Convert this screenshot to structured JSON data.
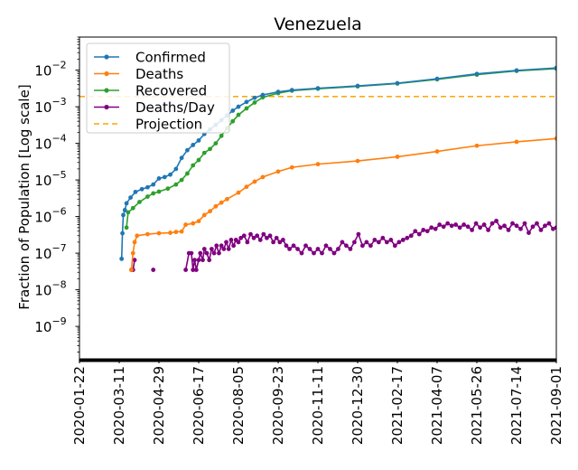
{
  "chart_data": {
    "type": "line",
    "title": "Venezuela",
    "xlabel": "",
    "ylabel": "Fraction of Population [Log scale]",
    "yscale": "log",
    "ylim": [
      1.3e-10,
      0.08
    ],
    "xlim": [
      "2020-01-22",
      "2021-09-01"
    ],
    "x_tick_labels": [
      "2020-01-22",
      "2020-03-11",
      "2020-04-29",
      "2020-06-17",
      "2020-08-05",
      "2020-09-23",
      "2020-11-11",
      "2020-12-30",
      "2021-02-17",
      "2021-04-07",
      "2021-05-26",
      "2021-07-14",
      "2021-09-01"
    ],
    "y_ticks": [
      {
        "value": 1e-09,
        "base": "10",
        "exp": "−9"
      },
      {
        "value": 1e-08,
        "base": "10",
        "exp": "−8"
      },
      {
        "value": 1e-07,
        "base": "10",
        "exp": "−7"
      },
      {
        "value": 1e-06,
        "base": "10",
        "exp": "−6"
      },
      {
        "value": 1e-05,
        "base": "10",
        "exp": "−5"
      },
      {
        "value": 0.0001,
        "base": "10",
        "exp": "−4"
      },
      {
        "value": 0.001,
        "base": "10",
        "exp": "−3"
      },
      {
        "value": 0.01,
        "base": "10",
        "exp": "−2"
      }
    ],
    "legend": {
      "position": "upper-left",
      "entries": [
        {
          "label": "Confirmed",
          "color": "#1f77b4",
          "style": "line-marker"
        },
        {
          "label": "Deaths",
          "color": "#ff7f0e",
          "style": "line-marker"
        },
        {
          "label": "Recovered",
          "color": "#2ca02c",
          "style": "line-marker"
        },
        {
          "label": "Deaths/Day",
          "color": "#800080",
          "style": "line-marker"
        },
        {
          "label": "Projection",
          "color": "#ffa500",
          "style": "dashed"
        }
      ]
    },
    "projection": {
      "label": "Projection",
      "value": 0.0019,
      "color": "#ffa500"
    },
    "series": [
      {
        "name": "Confirmed",
        "color": "#1f77b4",
        "points": [
          [
            "2020-03-14",
            7e-08
          ],
          [
            "2020-03-15",
            3.5e-07
          ],
          [
            "2020-03-16",
            1.1e-06
          ],
          [
            "2020-03-18",
            1.5e-06
          ],
          [
            "2020-03-20",
            2.3e-06
          ],
          [
            "2020-03-25",
            3.3e-06
          ],
          [
            "2020-03-31",
            4.7e-06
          ],
          [
            "2020-04-08",
            5.6e-06
          ],
          [
            "2020-04-15",
            6.3e-06
          ],
          [
            "2020-04-22",
            7.5e-06
          ],
          [
            "2020-04-29",
            1.1e-05
          ],
          [
            "2020-05-06",
            1.2e-05
          ],
          [
            "2020-05-13",
            1.4e-05
          ],
          [
            "2020-05-20",
            2e-05
          ],
          [
            "2020-05-27",
            4e-05
          ],
          [
            "2020-06-03",
            6.5e-05
          ],
          [
            "2020-06-10",
            9e-05
          ],
          [
            "2020-06-17",
            0.00012
          ],
          [
            "2020-06-24",
            0.00018
          ],
          [
            "2020-07-01",
            0.00024
          ],
          [
            "2020-07-08",
            0.00032
          ],
          [
            "2020-07-15",
            0.00043
          ],
          [
            "2020-07-22",
            0.00058
          ],
          [
            "2020-07-29",
            0.00078
          ],
          [
            "2020-08-05",
            0.001
          ],
          [
            "2020-08-15",
            0.00135
          ],
          [
            "2020-08-25",
            0.00175
          ],
          [
            "2020-09-04",
            0.0021
          ],
          [
            "2020-09-23",
            0.00255
          ],
          [
            "2020-10-10",
            0.00285
          ],
          [
            "2020-11-11",
            0.0032
          ],
          [
            "2020-12-30",
            0.0037
          ],
          [
            "2021-02-17",
            0.0044
          ],
          [
            "2021-04-07",
            0.0058
          ],
          [
            "2021-05-26",
            0.0079
          ],
          [
            "2021-07-14",
            0.0098
          ],
          [
            "2021-09-01",
            0.0115
          ]
        ]
      },
      {
        "name": "Deaths",
        "color": "#ff7f0e",
        "points": [
          [
            "2020-03-26",
            3.5e-08
          ],
          [
            "2020-03-28",
            1e-07
          ],
          [
            "2020-03-30",
            2e-07
          ],
          [
            "2020-04-02",
            3e-07
          ],
          [
            "2020-04-15",
            3.3e-07
          ],
          [
            "2020-04-29",
            3.5e-07
          ],
          [
            "2020-05-13",
            3.6e-07
          ],
          [
            "2020-05-20",
            3.8e-07
          ],
          [
            "2020-05-27",
            3.9e-07
          ],
          [
            "2020-06-01",
            6e-07
          ],
          [
            "2020-06-10",
            6.5e-07
          ],
          [
            "2020-06-17",
            7.5e-07
          ],
          [
            "2020-06-24",
            1.1e-06
          ],
          [
            "2020-07-01",
            1.4e-06
          ],
          [
            "2020-07-08",
            1.9e-06
          ],
          [
            "2020-07-15",
            2.4e-06
          ],
          [
            "2020-07-22",
            3e-06
          ],
          [
            "2020-08-05",
            4.5e-06
          ],
          [
            "2020-08-15",
            6.5e-06
          ],
          [
            "2020-08-25",
            9e-06
          ],
          [
            "2020-09-04",
            1.2e-05
          ],
          [
            "2020-09-23",
            1.7e-05
          ],
          [
            "2020-10-10",
            2.2e-05
          ],
          [
            "2020-11-11",
            2.7e-05
          ],
          [
            "2020-12-30",
            3.3e-05
          ],
          [
            "2021-02-17",
            4.3e-05
          ],
          [
            "2021-04-07",
            6e-05
          ],
          [
            "2021-05-26",
            8.6e-05
          ],
          [
            "2021-07-14",
            0.00011
          ],
          [
            "2021-09-01",
            0.000135
          ]
        ]
      },
      {
        "name": "Recovered",
        "color": "#2ca02c",
        "points": [
          [
            "2020-03-20",
            5e-07
          ],
          [
            "2020-03-22",
            1.3e-06
          ],
          [
            "2020-03-28",
            1.7e-06
          ],
          [
            "2020-04-05",
            2.5e-06
          ],
          [
            "2020-04-15",
            3.5e-06
          ],
          [
            "2020-04-22",
            4.3e-06
          ],
          [
            "2020-04-29",
            4.8e-06
          ],
          [
            "2020-05-10",
            5.8e-06
          ],
          [
            "2020-05-20",
            7.5e-06
          ],
          [
            "2020-05-27",
            1e-05
          ],
          [
            "2020-06-03",
            1.5e-05
          ],
          [
            "2020-06-10",
            2.5e-05
          ],
          [
            "2020-06-17",
            3.5e-05
          ],
          [
            "2020-06-24",
            5.5e-05
          ],
          [
            "2020-07-01",
            7e-05
          ],
          [
            "2020-07-08",
            0.0001
          ],
          [
            "2020-07-15",
            0.00016
          ],
          [
            "2020-07-22",
            0.00026
          ],
          [
            "2020-07-29",
            0.0004
          ],
          [
            "2020-08-05",
            0.0006
          ],
          [
            "2020-08-15",
            0.0009
          ],
          [
            "2020-08-25",
            0.0013
          ],
          [
            "2020-09-04",
            0.0018
          ],
          [
            "2020-09-23",
            0.00235
          ],
          [
            "2020-10-10",
            0.00275
          ],
          [
            "2020-11-11",
            0.0031
          ],
          [
            "2020-12-30",
            0.0036
          ],
          [
            "2021-02-17",
            0.0043
          ],
          [
            "2021-04-07",
            0.0056
          ],
          [
            "2021-05-26",
            0.0075
          ],
          [
            "2021-07-14",
            0.0095
          ],
          [
            "2021-09-01",
            0.011
          ]
        ]
      },
      {
        "name": "Deaths/Day",
        "color": "#800080",
        "points": [
          [
            "2020-03-26",
            3.5e-08
          ],
          [
            "2020-03-28",
            3.5e-08
          ],
          [
            "2020-03-30",
            6.5e-08
          ],
          [
            "2020-04-22",
            3.5e-08
          ],
          [
            "2020-06-01",
            3.5e-08
          ],
          [
            "2020-06-05",
            1e-07
          ],
          [
            "2020-06-08",
            1e-07
          ],
          [
            "2020-06-10",
            3.5e-08
          ],
          [
            "2020-06-12",
            6.5e-08
          ],
          [
            "2020-06-14",
            3.5e-08
          ],
          [
            "2020-06-17",
            6.5e-08
          ],
          [
            "2020-06-19",
            1e-07
          ],
          [
            "2020-06-22",
            6.5e-08
          ],
          [
            "2020-06-24",
            1.3e-07
          ],
          [
            "2020-06-27",
            1e-07
          ],
          [
            "2020-06-30",
            6.5e-08
          ],
          [
            "2020-07-03",
            1.3e-07
          ],
          [
            "2020-07-06",
            1e-07
          ],
          [
            "2020-07-09",
            1.6e-07
          ],
          [
            "2020-07-12",
            1e-07
          ],
          [
            "2020-07-15",
            1.6e-07
          ],
          [
            "2020-07-18",
            1.3e-07
          ],
          [
            "2020-07-21",
            2e-07
          ],
          [
            "2020-07-24",
            1.3e-07
          ],
          [
            "2020-07-27",
            2.3e-07
          ],
          [
            "2020-07-30",
            1.6e-07
          ],
          [
            "2020-08-02",
            2.3e-07
          ],
          [
            "2020-08-05",
            2e-07
          ],
          [
            "2020-08-08",
            2.6e-07
          ],
          [
            "2020-08-12",
            3e-07
          ],
          [
            "2020-08-16",
            2e-07
          ],
          [
            "2020-08-20",
            3.3e-07
          ],
          [
            "2020-08-24",
            2.6e-07
          ],
          [
            "2020-08-28",
            3e-07
          ],
          [
            "2020-09-01",
            2.3e-07
          ],
          [
            "2020-09-05",
            3.3e-07
          ],
          [
            "2020-09-09",
            2.6e-07
          ],
          [
            "2020-09-13",
            3e-07
          ],
          [
            "2020-09-17",
            2e-07
          ],
          [
            "2020-09-21",
            2.6e-07
          ],
          [
            "2020-09-25",
            2e-07
          ],
          [
            "2020-09-29",
            2.3e-07
          ],
          [
            "2020-10-03",
            1.6e-07
          ],
          [
            "2020-10-07",
            1.3e-07
          ],
          [
            "2020-10-12",
            1.6e-07
          ],
          [
            "2020-10-17",
            1.3e-07
          ],
          [
            "2020-10-22",
            1e-07
          ],
          [
            "2020-10-27",
            1.6e-07
          ],
          [
            "2020-11-01",
            1.3e-07
          ],
          [
            "2020-11-06",
            1e-07
          ],
          [
            "2020-11-11",
            1.3e-07
          ],
          [
            "2020-11-16",
            1e-07
          ],
          [
            "2020-11-21",
            1.6e-07
          ],
          [
            "2020-11-26",
            1.3e-07
          ],
          [
            "2020-12-01",
            1e-07
          ],
          [
            "2020-12-06",
            1.3e-07
          ],
          [
            "2020-12-11",
            2e-07
          ],
          [
            "2020-12-16",
            1.6e-07
          ],
          [
            "2020-12-21",
            1.3e-07
          ],
          [
            "2020-12-26",
            2e-07
          ],
          [
            "2020-12-31",
            3.3e-07
          ],
          [
            "2021-01-05",
            1.6e-07
          ],
          [
            "2021-01-10",
            2e-07
          ],
          [
            "2021-01-15",
            1.6e-07
          ],
          [
            "2021-01-20",
            2.3e-07
          ],
          [
            "2021-01-25",
            2e-07
          ],
          [
            "2021-01-30",
            2.6e-07
          ],
          [
            "2021-02-04",
            2e-07
          ],
          [
            "2021-02-09",
            2.3e-07
          ],
          [
            "2021-02-14",
            1.6e-07
          ],
          [
            "2021-02-19",
            2e-07
          ],
          [
            "2021-02-24",
            2.3e-07
          ],
          [
            "2021-03-01",
            2.6e-07
          ],
          [
            "2021-03-06",
            3e-07
          ],
          [
            "2021-03-11",
            4e-07
          ],
          [
            "2021-03-16",
            3.3e-07
          ],
          [
            "2021-03-21",
            4.3e-07
          ],
          [
            "2021-03-26",
            4e-07
          ],
          [
            "2021-03-31",
            5e-07
          ],
          [
            "2021-04-05",
            4.6e-07
          ],
          [
            "2021-04-10",
            6e-07
          ],
          [
            "2021-04-15",
            5.3e-07
          ],
          [
            "2021-04-20",
            6.5e-07
          ],
          [
            "2021-04-25",
            5.6e-07
          ],
          [
            "2021-04-30",
            6e-07
          ],
          [
            "2021-05-05",
            5e-07
          ],
          [
            "2021-05-10",
            6e-07
          ],
          [
            "2021-05-15",
            5.3e-07
          ],
          [
            "2021-05-20",
            4.3e-07
          ],
          [
            "2021-05-25",
            6.5e-07
          ],
          [
            "2021-05-30",
            5e-07
          ],
          [
            "2021-06-04",
            6e-07
          ],
          [
            "2021-06-09",
            4.3e-07
          ],
          [
            "2021-06-14",
            6.5e-07
          ],
          [
            "2021-06-19",
            7.6e-07
          ],
          [
            "2021-06-24",
            5e-07
          ],
          [
            "2021-06-29",
            5.6e-07
          ],
          [
            "2021-07-04",
            4.3e-07
          ],
          [
            "2021-07-09",
            6.5e-07
          ],
          [
            "2021-07-14",
            5.6e-07
          ],
          [
            "2021-07-19",
            4.6e-07
          ],
          [
            "2021-07-24",
            6.5e-07
          ],
          [
            "2021-07-29",
            3.6e-07
          ],
          [
            "2021-08-03",
            5.3e-07
          ],
          [
            "2021-08-08",
            6.5e-07
          ],
          [
            "2021-08-13",
            4.3e-07
          ],
          [
            "2021-08-18",
            5.6e-07
          ],
          [
            "2021-08-23",
            6.5e-07
          ],
          [
            "2021-08-28",
            4.6e-07
          ],
          [
            "2021-09-01",
            5e-07
          ]
        ]
      }
    ]
  }
}
